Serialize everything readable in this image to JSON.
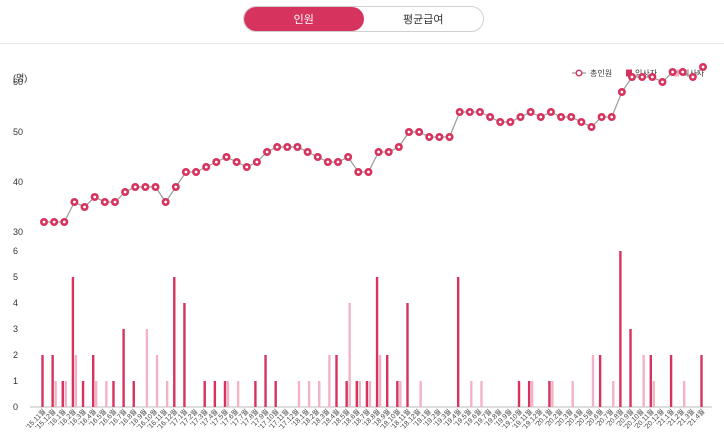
{
  "tabs": [
    {
      "label": "인원",
      "active": true
    },
    {
      "label": "평균급여",
      "active": false
    }
  ],
  "colors": {
    "total": "#d6335e",
    "hire": "#d6335e",
    "leave": "#f2b3c6",
    "line": "#9a9a9a"
  },
  "chart_data": [
    {
      "type": "line",
      "ylabel": "(명)",
      "ylim": [
        30,
        65
      ],
      "yticks": [
        30,
        40,
        50,
        60
      ],
      "series": [
        {
          "name": "총인원",
          "values": [
            32,
            32,
            32,
            36,
            35,
            37,
            36,
            36,
            38,
            39,
            39,
            39,
            36,
            39,
            42,
            42,
            43,
            44,
            45,
            44,
            43,
            44,
            46,
            47,
            47,
            47,
            46,
            45,
            44,
            44,
            45,
            42,
            42,
            46,
            46,
            47,
            50,
            50,
            49,
            49,
            49,
            54,
            54,
            54,
            53,
            52,
            52,
            53,
            54,
            53,
            54,
            53,
            53,
            52,
            51,
            53,
            53,
            58,
            61,
            61,
            61,
            60,
            62,
            62,
            61,
            63
          ]
        }
      ]
    },
    {
      "type": "bar",
      "ylim": [
        0,
        6
      ],
      "yticks": [
        0,
        1,
        2,
        3,
        4,
        5,
        6
      ],
      "categories": [
        "'15.11월",
        "'15.12월",
        "'16.1월",
        "'16.2월",
        "'16.3월",
        "'16.4월",
        "'16.5월",
        "'16.6월",
        "'16.7월",
        "'16.8월",
        "'16.9월",
        "'16.10월",
        "'16.11월",
        "'16.12월",
        "'17.1월",
        "'17.2월",
        "'17.3월",
        "'17.4월",
        "'17.5월",
        "'17.6월",
        "'17.7월",
        "'17.8월",
        "'17.9월",
        "'17.10월",
        "'17.11월",
        "'17.12월",
        "'18.1월",
        "'18.2월",
        "'18.3월",
        "'18.4월",
        "'18.5월",
        "'18.6월",
        "'18.7월",
        "'18.8월",
        "'18.9월",
        "'18.10월",
        "'18.11월",
        "'18.12월",
        "'19.1월",
        "'19.2월",
        "'19.3월",
        "'19.4월",
        "'19.5월",
        "'19.6월",
        "'19.7월",
        "'19.8월",
        "'19.9월",
        "'19.10월",
        "'19.11월",
        "'19.12월",
        "'20.1월",
        "'20.2월",
        "'20.3월",
        "'20.4월",
        "'20.5월",
        "'20.6월",
        "'20.7월",
        "'20.8월",
        "'20.9월",
        "'20.10월",
        "'20.11월",
        "'20.12월",
        "'21.1월",
        "'21.2월",
        "'21.3월",
        "'21.4월"
      ],
      "series": [
        {
          "name": "입사자",
          "values": [
            2,
            2,
            1,
            5,
            1,
            2,
            0,
            1,
            3,
            1,
            0,
            0,
            0,
            5,
            4,
            0,
            1,
            1,
            1,
            0,
            0,
            1,
            2,
            1,
            0,
            0,
            0,
            0,
            0,
            2,
            1,
            1,
            1,
            5,
            2,
            1,
            4,
            0,
            0,
            0,
            0,
            5,
            0,
            0,
            0,
            0,
            0,
            1,
            1,
            0,
            1,
            0,
            0,
            0,
            0,
            2,
            0,
            6,
            3,
            0,
            2,
            0,
            2,
            0,
            0,
            2
          ]
        },
        {
          "name": "퇴사자",
          "values": [
            0,
            1,
            1,
            2,
            0,
            1,
            1,
            0,
            0,
            0,
            3,
            2,
            1,
            0,
            0,
            0,
            0,
            0,
            1,
            1,
            0,
            0,
            0,
            0,
            0,
            1,
            1,
            1,
            2,
            0,
            4,
            1,
            1,
            2,
            0,
            1,
            0,
            1,
            0,
            0,
            0,
            0,
            1,
            1,
            0,
            0,
            0,
            0,
            1,
            0,
            1,
            0,
            1,
            0,
            2,
            0,
            1,
            0,
            0,
            2,
            1,
            0,
            0,
            1,
            0,
            0
          ]
        }
      ]
    }
  ]
}
